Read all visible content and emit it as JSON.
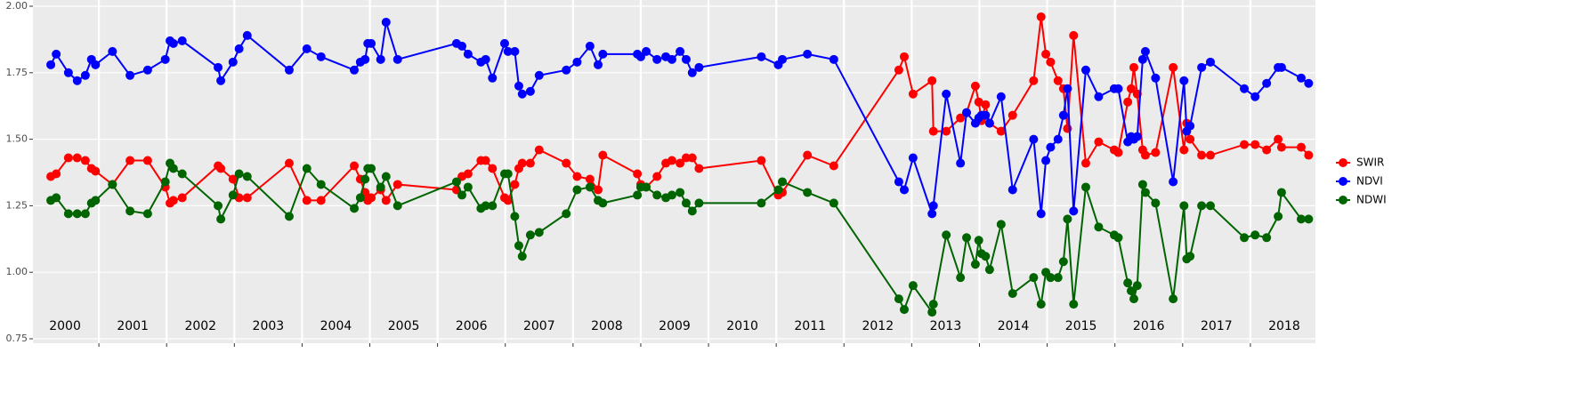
{
  "chart_data": {
    "type": "line",
    "x": [
      2000.29,
      2000.37,
      2000.55,
      2000.68,
      2000.8,
      2000.89,
      2000.95,
      2001.2,
      2001.46,
      2001.72,
      2001.98,
      2002.05,
      2002.1,
      2002.23,
      2002.76,
      2002.8,
      2002.98,
      2003.07,
      2003.19,
      2003.81,
      2004.07,
      2004.28,
      2004.77,
      2004.86,
      2004.93,
      2004.97,
      2005.02,
      2005.16,
      2005.24,
      2005.41,
      2006.28,
      2006.36,
      2006.45,
      2006.64,
      2006.71,
      2006.81,
      2006.99,
      2007.04,
      2007.14,
      2007.2,
      2007.25,
      2007.37,
      2007.5,
      2007.9,
      2008.06,
      2008.25,
      2008.37,
      2008.44,
      2008.95,
      2009.0,
      2009.08,
      2009.24,
      2009.37,
      2009.46,
      2009.58,
      2009.67,
      2009.76,
      2009.86,
      2010.78,
      2011.03,
      2011.09,
      2011.46,
      2011.85,
      2012.81,
      2012.89,
      2013.02,
      2013.3,
      2013.32,
      2013.51,
      2013.72,
      2013.81,
      2013.94,
      2013.99,
      2014.03,
      2014.09,
      2014.15,
      2014.32,
      2014.49,
      2014.8,
      2014.91,
      2014.98,
      2015.05,
      2015.16,
      2015.24,
      2015.3,
      2015.39,
      2015.57,
      2015.76,
      2015.99,
      2016.05,
      2016.19,
      2016.24,
      2016.28,
      2016.33,
      2016.41,
      2016.45,
      2016.6,
      2016.86,
      2017.02,
      2017.06,
      2017.11,
      2017.28,
      2017.41,
      2017.91,
      2018.07,
      2018.24,
      2018.41,
      2018.46,
      2018.75,
      2018.86
    ],
    "series": [
      {
        "name": "SWIR",
        "color": "#ff0000",
        "values": [
          1.36,
          1.37,
          1.43,
          1.43,
          1.42,
          1.39,
          1.38,
          1.33,
          1.42,
          1.42,
          1.32,
          1.26,
          1.27,
          1.28,
          1.4,
          1.39,
          1.35,
          1.28,
          1.28,
          1.41,
          1.27,
          1.27,
          1.4,
          1.35,
          1.3,
          1.27,
          1.28,
          1.31,
          1.27,
          1.33,
          1.31,
          1.36,
          1.37,
          1.42,
          1.42,
          1.39,
          1.28,
          1.27,
          1.33,
          1.39,
          1.41,
          1.41,
          1.46,
          1.41,
          1.36,
          1.35,
          1.31,
          1.44,
          1.37,
          1.33,
          1.32,
          1.36,
          1.41,
          1.42,
          1.41,
          1.43,
          1.43,
          1.39,
          1.42,
          1.29,
          1.3,
          1.44,
          1.4,
          1.76,
          1.81,
          1.67,
          1.72,
          1.53,
          1.53,
          1.58,
          1.6,
          1.7,
          1.64,
          1.57,
          1.63,
          1.56,
          1.53,
          1.59,
          1.72,
          1.96,
          1.82,
          1.79,
          1.72,
          1.69,
          1.54,
          1.89,
          1.41,
          1.49,
          1.46,
          1.45,
          1.64,
          1.69,
          1.77,
          1.67,
          1.46,
          1.44,
          1.45,
          1.77,
          1.46,
          1.56,
          1.5,
          1.44,
          1.44,
          1.48,
          1.48,
          1.46,
          1.5,
          1.47,
          1.47,
          1.44
        ]
      },
      {
        "name": "NDVI",
        "color": "#0000ff",
        "values": [
          1.78,
          1.82,
          1.75,
          1.72,
          1.74,
          1.8,
          1.78,
          1.83,
          1.74,
          1.76,
          1.8,
          1.87,
          1.86,
          1.87,
          1.77,
          1.72,
          1.79,
          1.84,
          1.89,
          1.76,
          1.84,
          1.81,
          1.76,
          1.79,
          1.8,
          1.86,
          1.86,
          1.8,
          1.94,
          1.8,
          1.86,
          1.85,
          1.82,
          1.79,
          1.8,
          1.73,
          1.86,
          1.83,
          1.83,
          1.7,
          1.67,
          1.68,
          1.74,
          1.76,
          1.79,
          1.85,
          1.78,
          1.82,
          1.82,
          1.81,
          1.83,
          1.8,
          1.81,
          1.8,
          1.83,
          1.8,
          1.75,
          1.77,
          1.81,
          1.78,
          1.8,
          1.82,
          1.8,
          1.34,
          1.31,
          1.43,
          1.22,
          1.25,
          1.67,
          1.41,
          1.6,
          1.56,
          1.58,
          1.59,
          1.59,
          1.56,
          1.66,
          1.31,
          1.5,
          1.22,
          1.42,
          1.47,
          1.5,
          1.59,
          1.69,
          1.23,
          1.76,
          1.66,
          1.69,
          1.69,
          1.49,
          1.51,
          1.5,
          1.51,
          1.8,
          1.83,
          1.73,
          1.34,
          1.72,
          1.53,
          1.55,
          1.77,
          1.79,
          1.69,
          1.66,
          1.71,
          1.77,
          1.77,
          1.73,
          1.71
        ]
      },
      {
        "name": "NDWI",
        "color": "#006400",
        "values": [
          1.27,
          1.28,
          1.22,
          1.22,
          1.22,
          1.26,
          1.27,
          1.33,
          1.23,
          1.22,
          1.34,
          1.41,
          1.39,
          1.37,
          1.25,
          1.2,
          1.29,
          1.37,
          1.36,
          1.21,
          1.39,
          1.33,
          1.24,
          1.28,
          1.35,
          1.39,
          1.39,
          1.32,
          1.36,
          1.25,
          1.34,
          1.29,
          1.32,
          1.24,
          1.25,
          1.25,
          1.37,
          1.37,
          1.21,
          1.1,
          1.06,
          1.14,
          1.15,
          1.22,
          1.31,
          1.32,
          1.27,
          1.26,
          1.29,
          1.32,
          1.32,
          1.29,
          1.28,
          1.29,
          1.3,
          1.26,
          1.23,
          1.26,
          1.26,
          1.31,
          1.34,
          1.3,
          1.26,
          0.9,
          0.86,
          0.95,
          0.85,
          0.88,
          1.14,
          0.98,
          1.13,
          1.03,
          1.12,
          1.07,
          1.06,
          1.01,
          1.18,
          0.92,
          0.98,
          0.88,
          1.0,
          0.98,
          0.98,
          1.04,
          1.2,
          0.88,
          1.32,
          1.17,
          1.14,
          1.13,
          0.96,
          0.93,
          0.9,
          0.95,
          1.33,
          1.3,
          1.26,
          0.9,
          1.25,
          1.05,
          1.06,
          1.25,
          1.25,
          1.13,
          1.14,
          1.13,
          1.21,
          1.3,
          1.2,
          1.2
        ]
      }
    ],
    "xlim": [
      2000,
      2019
    ],
    "xticks": [
      2001,
      2002,
      2003,
      2004,
      2005,
      2006,
      2007,
      2008,
      2009,
      2010,
      2011,
      2012,
      2013,
      2014,
      2015,
      2016,
      2017,
      2018
    ],
    "year_labels": [
      {
        "value": 2000.5,
        "label": "2000"
      },
      {
        "value": 2001.5,
        "label": "2001"
      },
      {
        "value": 2002.5,
        "label": "2002"
      },
      {
        "value": 2003.5,
        "label": "2003"
      },
      {
        "value": 2004.5,
        "label": "2004"
      },
      {
        "value": 2005.5,
        "label": "2005"
      },
      {
        "value": 2006.5,
        "label": "2006"
      },
      {
        "value": 2007.5,
        "label": "2007"
      },
      {
        "value": 2008.5,
        "label": "2008"
      },
      {
        "value": 2009.5,
        "label": "2009"
      },
      {
        "value": 2010.5,
        "label": "2010"
      },
      {
        "value": 2011.5,
        "label": "2011"
      },
      {
        "value": 2012.5,
        "label": "2012"
      },
      {
        "value": 2013.5,
        "label": "2013"
      },
      {
        "value": 2014.5,
        "label": "2014"
      },
      {
        "value": 2015.5,
        "label": "2015"
      },
      {
        "value": 2016.5,
        "label": "2016"
      },
      {
        "value": 2017.5,
        "label": "2017"
      },
      {
        "value": 2018.5,
        "label": "2018"
      }
    ],
    "ylim": [
      0.75,
      2.0
    ],
    "yticks": [
      {
        "value": 0.75,
        "label": "0.75"
      },
      {
        "value": 1.0,
        "label": "1.00"
      },
      {
        "value": 1.25,
        "label": "1.25"
      },
      {
        "value": 1.5,
        "label": "1.50"
      },
      {
        "value": 1.75,
        "label": "1.75"
      },
      {
        "value": 2.0,
        "label": "2.00"
      }
    ],
    "grid": true,
    "legend": "right"
  }
}
